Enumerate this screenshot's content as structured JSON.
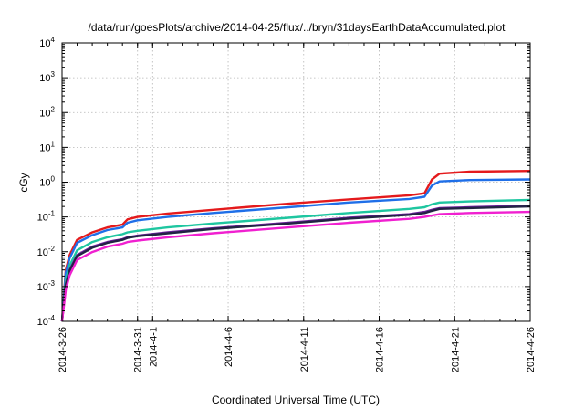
{
  "chart_data": {
    "type": "line",
    "title": "/data/run/goesPlots/archive/2014-04-25/flux/../bryn/31daysEarthDataAccumulated.plot",
    "xlabel": "Coordinated Universal Time (UTC)",
    "ylabel": "cGy",
    "yscale": "log",
    "ylim": [
      0.0001,
      10000
    ],
    "xlim": [
      "2014-03-26",
      "2014-04-26"
    ],
    "grid": true,
    "legend": "none",
    "x_tick_labels": [
      "2014-3-26",
      "2014-3-31",
      "2014-4-1",
      "2014-4-6",
      "2014-4-11",
      "2014-4-16",
      "2014-4-21",
      "2014-4-26"
    ],
    "x_tick_dates": [
      "2014-03-26",
      "2014-03-31",
      "2014-04-01",
      "2014-04-06",
      "2014-04-11",
      "2014-04-16",
      "2014-04-21",
      "2014-04-26"
    ],
    "y_ticks": [
      {
        "value": 0.0001,
        "base": "10",
        "exp": "-4"
      },
      {
        "value": 0.001,
        "base": "10",
        "exp": "-3"
      },
      {
        "value": 0.01,
        "base": "10",
        "exp": "-2"
      },
      {
        "value": 0.1,
        "base": "10",
        "exp": "-1"
      },
      {
        "value": 1,
        "base": "10",
        "exp": "0"
      },
      {
        "value": 10,
        "base": "10",
        "exp": "1"
      },
      {
        "value": 100,
        "base": "10",
        "exp": "2"
      },
      {
        "value": 1000,
        "base": "10",
        "exp": "3"
      },
      {
        "value": 10000,
        "base": "10",
        "exp": "4"
      }
    ],
    "x": [
      "2014-03-26",
      "2014-03-26T06:00",
      "2014-03-26T12:00",
      "2014-03-27",
      "2014-03-28",
      "2014-03-29",
      "2014-03-30",
      "2014-03-30T08:00",
      "2014-03-31",
      "2014-04-02",
      "2014-04-05",
      "2014-04-10",
      "2014-04-14",
      "2014-04-18",
      "2014-04-19",
      "2014-04-19T12:00",
      "2014-04-20",
      "2014-04-22",
      "2014-04-26"
    ],
    "series": [
      {
        "color": "#e41a1c",
        "values": [
          0.0001,
          0.003,
          0.008,
          0.022,
          0.036,
          0.05,
          0.06,
          0.085,
          0.1,
          0.125,
          0.16,
          0.24,
          0.32,
          0.42,
          0.48,
          1.2,
          1.75,
          2.0,
          2.1
        ]
      },
      {
        "color": "#1f6fe8",
        "values": [
          0.0001,
          0.0025,
          0.0065,
          0.018,
          0.03,
          0.042,
          0.05,
          0.068,
          0.08,
          0.1,
          0.13,
          0.19,
          0.26,
          0.33,
          0.38,
          0.8,
          1.05,
          1.15,
          1.2
        ]
      },
      {
        "color": "#1ec6a0",
        "values": [
          0.0001,
          0.0016,
          0.004,
          0.011,
          0.019,
          0.026,
          0.032,
          0.036,
          0.04,
          0.05,
          0.065,
          0.095,
          0.13,
          0.17,
          0.19,
          0.23,
          0.26,
          0.28,
          0.31
        ]
      },
      {
        "color": "#6a1f9a",
        "values": [
          0.0001,
          0.0012,
          0.003,
          0.008,
          0.014,
          0.019,
          0.023,
          0.026,
          0.029,
          0.036,
          0.047,
          0.068,
          0.095,
          0.12,
          0.14,
          0.16,
          0.18,
          0.19,
          0.21
        ]
      },
      {
        "color": "#222244",
        "values": [
          0.0001,
          0.0011,
          0.0028,
          0.0075,
          0.013,
          0.018,
          0.022,
          0.025,
          0.028,
          0.034,
          0.045,
          0.065,
          0.09,
          0.115,
          0.13,
          0.15,
          0.17,
          0.18,
          0.2
        ]
      },
      {
        "color": "#f020d0",
        "values": [
          0.0001,
          0.0008,
          0.0021,
          0.0058,
          0.0098,
          0.014,
          0.017,
          0.019,
          0.021,
          0.026,
          0.034,
          0.05,
          0.068,
          0.088,
          0.1,
          0.11,
          0.12,
          0.13,
          0.14
        ]
      }
    ]
  }
}
